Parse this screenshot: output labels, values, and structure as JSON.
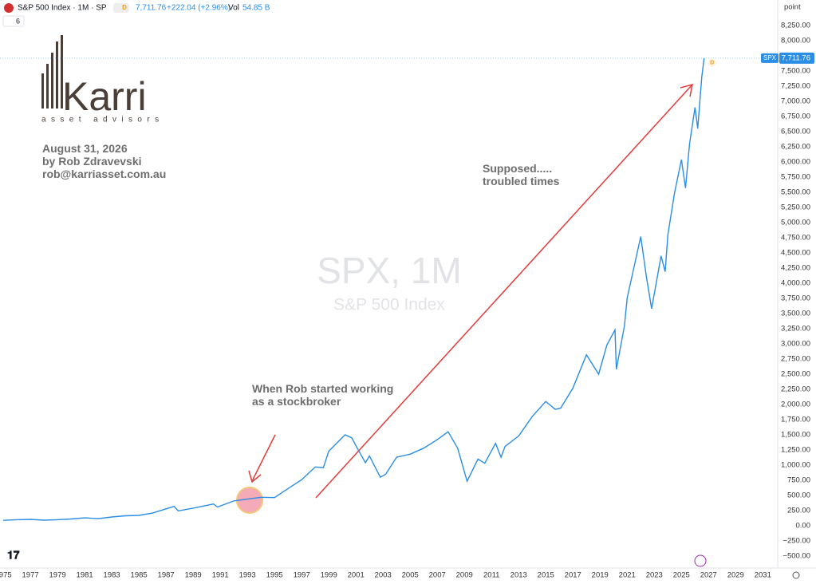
{
  "chart_data": {
    "type": "line",
    "title": "S&P 500 Index · 1M · SP",
    "header": {
      "price": "7,711.76",
      "change": "+222.04 (+2.96%)",
      "vol_label": "Vol",
      "vol": "54.85 B",
      "indicator_count": "6"
    },
    "watermark": {
      "symbol": "SPX, 1M",
      "name": "S&P 500 Index"
    },
    "logo": {
      "name": "Karri",
      "tagline": "asset advisors"
    },
    "annotations": {
      "date": "August 31, 2026",
      "author": "by Rob Zdravevski",
      "email": "rob@karriasset.com.au",
      "supposed_1": "Supposed.....",
      "supposed_2": "troubled times",
      "started_1": "When Rob started working",
      "started_2": "as a stockbroker"
    },
    "y_axis_unit": "point",
    "symbol_badge": "SPX",
    "timeframe_badge": "D",
    "color": "#2a8de6",
    "grid": false,
    "x": [
      1975.0,
      1976.0,
      1977.0,
      1978.0,
      1979.0,
      1980.0,
      1981.0,
      1982.0,
      1983.0,
      1984.0,
      1985.0,
      1986.0,
      1987.6,
      1987.9,
      1989.0,
      1990.5,
      1990.8,
      1992.0,
      1993.0,
      1994.0,
      1995.0,
      1996.0,
      1997.0,
      1998.0,
      1998.6,
      1999.0,
      2000.2,
      2000.7,
      2001.0,
      2001.7,
      2002.0,
      2002.8,
      2003.2,
      2004.0,
      2005.0,
      2006.0,
      2007.0,
      2007.8,
      2008.5,
      2009.2,
      2010.0,
      2010.5,
      2011.3,
      2011.7,
      2012.0,
      2013.0,
      2014.0,
      2015.0,
      2015.7,
      2016.1,
      2017.0,
      2018.0,
      2018.9,
      2019.5,
      2020.1,
      2020.2,
      2020.8,
      2021.0,
      2022.0,
      2022.4,
      2022.8,
      2023.5,
      2023.8,
      2024.0,
      2024.5,
      2025.0,
      2025.3,
      2025.6,
      2026.0,
      2026.2,
      2026.5,
      2026.67
    ],
    "values": [
      90,
      100,
      105,
      92,
      100,
      112,
      130,
      118,
      145,
      165,
      172,
      210,
      320,
      245,
      290,
      360,
      310,
      410,
      440,
      470,
      465,
      615,
      760,
      970,
      960,
      1230,
      1500,
      1450,
      1320,
      1040,
      1150,
      800,
      850,
      1130,
      1180,
      1280,
      1420,
      1550,
      1280,
      735,
      1100,
      1030,
      1360,
      1130,
      1310,
      1480,
      1800,
      2050,
      1920,
      1940,
      2270,
      2820,
      2500,
      2980,
      3230,
      2580,
      3300,
      3760,
      4770,
      4130,
      3580,
      4450,
      4190,
      4800,
      5500,
      6040,
      5570,
      6300,
      6900,
      6550,
      7400,
      7711.76
    ],
    "xlim": [
      1974.76,
      2032.1
    ],
    "xticks": [
      1975,
      1977,
      1979,
      1981,
      1983,
      1985,
      1987,
      1989,
      1991,
      1993,
      1995,
      1997,
      1999,
      2001,
      2003,
      2005,
      2007,
      2009,
      2011,
      2013,
      2015,
      2017,
      2019,
      2021,
      2023,
      2025,
      2027,
      2029,
      2031
    ],
    "ylim": [
      -697,
      8671
    ],
    "yticks": [
      {
        "value": -500,
        "label": "−500.00"
      },
      {
        "value": -250,
        "label": "−250.00"
      },
      {
        "value": 0,
        "label": "0.00"
      },
      {
        "value": 250,
        "label": "250.00"
      },
      {
        "value": 500,
        "label": "500.00"
      },
      {
        "value": 750,
        "label": "750.00"
      },
      {
        "value": 1000,
        "label": "1,000.00"
      },
      {
        "value": 1250,
        "label": "1,250.00"
      },
      {
        "value": 1500,
        "label": "1,500.00"
      },
      {
        "value": 1750,
        "label": "1,750.00"
      },
      {
        "value": 2000,
        "label": "2,000.00"
      },
      {
        "value": 2250,
        "label": "2,250.00"
      },
      {
        "value": 2500,
        "label": "2,500.00"
      },
      {
        "value": 2750,
        "label": "2,750.00"
      },
      {
        "value": 3000,
        "label": "3,000.00"
      },
      {
        "value": 3250,
        "label": "3,250.00"
      },
      {
        "value": 3500,
        "label": "3,500.00"
      },
      {
        "value": 3750,
        "label": "3,750.00"
      },
      {
        "value": 4000,
        "label": "4,000.00"
      },
      {
        "value": 4250,
        "label": "4,250.00"
      },
      {
        "value": 4500,
        "label": "4,500.00"
      },
      {
        "value": 4750,
        "label": "4,750.00"
      },
      {
        "value": 5000,
        "label": "5,000.00"
      },
      {
        "value": 5250,
        "label": "5,250.00"
      },
      {
        "value": 5500,
        "label": "5,500.00"
      },
      {
        "value": 5750,
        "label": "5,750.00"
      },
      {
        "value": 6000,
        "label": "6,000.00"
      },
      {
        "value": 6250,
        "label": "6,250.00"
      },
      {
        "value": 6500,
        "label": "6,500.00"
      },
      {
        "value": 6750,
        "label": "6,750.00"
      },
      {
        "value": 7000,
        "label": "7,000.00"
      },
      {
        "value": 7250,
        "label": "7,250.00"
      },
      {
        "value": 7500,
        "label": "7,500.00"
      },
      {
        "value": 8000,
        "label": "8,000.00"
      },
      {
        "value": 8250,
        "label": "8,250.00"
      }
    ]
  }
}
